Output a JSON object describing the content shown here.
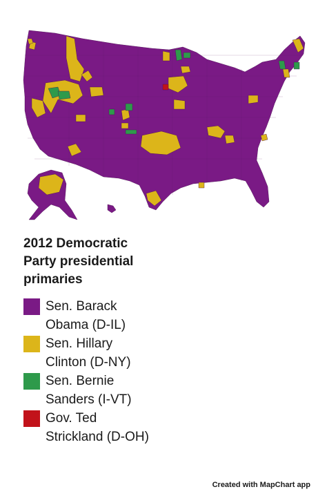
{
  "legend_title": "2012 Democratic Party presidential primaries",
  "legend": [
    {
      "label": "Sen. Barack Obama (D-IL)",
      "color": "#7a1a85"
    },
    {
      "label": "Sen. Hillary Clinton (D-NY)",
      "color": "#dcb51a"
    },
    {
      "label": "Sen. Bernie Sanders (I-VT)",
      "color": "#2e9a4b"
    },
    {
      "label": "Gov. Ted Strickland (D-OH)",
      "color": "#c2121a"
    }
  ],
  "credit": "Created with MapChart app",
  "colors": {
    "obama": "#7a1a85",
    "clinton": "#dcb51a",
    "sanders": "#2e9a4b",
    "strickland": "#c2121a",
    "border": "#4a1050"
  }
}
